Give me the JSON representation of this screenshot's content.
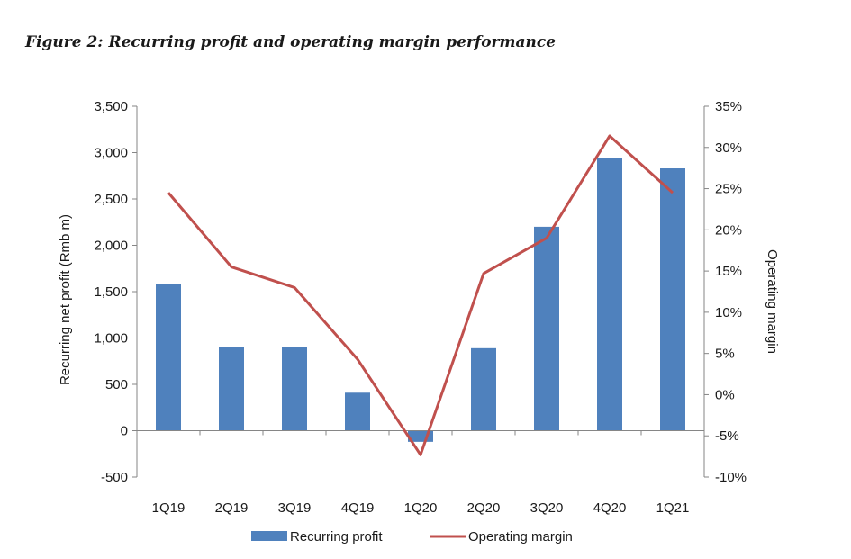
{
  "figure_title": "Figure 2: Recurring profit and operating margin performance",
  "chart_data": {
    "type": "bar",
    "categories": [
      "1Q19",
      "2Q19",
      "3Q19",
      "4Q19",
      "1Q20",
      "2Q20",
      "3Q20",
      "4Q20",
      "1Q21"
    ],
    "series": [
      {
        "name": "Recurring profit",
        "type": "bar",
        "axis": "left",
        "color": "#4f81bd",
        "values": [
          1580,
          900,
          900,
          410,
          -120,
          890,
          2200,
          2940,
          2830
        ]
      },
      {
        "name": "Operating margin",
        "type": "line",
        "axis": "right",
        "color": "#c0504d",
        "values": [
          24.5,
          15.5,
          13.0,
          4.3,
          -7.3,
          14.7,
          19.0,
          31.4,
          24.5
        ]
      }
    ],
    "ylabel": "Recurring net profit (Rmb m)",
    "ylim": [
      -500,
      3500
    ],
    "yticks": [
      "3,500",
      "3,000",
      "2,500",
      "2,000",
      "1,500",
      "1,000",
      "500",
      "0",
      "-500"
    ],
    "y2label": "Operating margin",
    "y2lim": [
      -10,
      35
    ],
    "y2ticks": [
      "35%",
      "30%",
      "25%",
      "20%",
      "15%",
      "10%",
      "5%",
      "0%",
      "-5%",
      "-10%"
    ],
    "grid": false,
    "legend_position": "bottom"
  }
}
